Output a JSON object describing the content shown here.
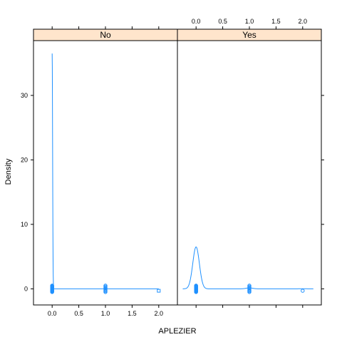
{
  "chart_data": {
    "type": "line",
    "title": "",
    "xlabel": "APLEZIER",
    "ylabel": "Density",
    "xlim": [
      -0.35,
      2.35
    ],
    "ylim": [
      -2.5,
      38.5
    ],
    "x_ticks": [
      "0.0",
      "0.5",
      "1.0",
      "1.5",
      "2.0"
    ],
    "y_ticks": [
      "0",
      "10",
      "20",
      "30"
    ],
    "layout": "two panels side by side with strip headers",
    "colors": {
      "line": "#1E90FF",
      "points": "#1E90FF",
      "strip": "#FFE5CC"
    },
    "panels": [
      {
        "strip": "No",
        "density_peak": {
          "x": 0.0,
          "y": 36.5
        },
        "density_xrange": [
          0.0,
          2.0
        ],
        "rug": [
          {
            "x": 0.0,
            "count": "many"
          },
          {
            "x": 1.0,
            "count": "several"
          },
          {
            "x": 2.0,
            "count": 1
          }
        ]
      },
      {
        "strip": "Yes",
        "density_peak": {
          "x": 0.0,
          "y": 6.5
        },
        "density_secondary": {
          "x": 1.0,
          "y": 0.15
        },
        "density_xrange": [
          -0.25,
          2.2
        ],
        "rug": [
          {
            "x": 0.0,
            "count": "many"
          },
          {
            "x": 1.0,
            "count": "several"
          },
          {
            "x": 2.0,
            "count": 1
          }
        ]
      }
    ]
  }
}
